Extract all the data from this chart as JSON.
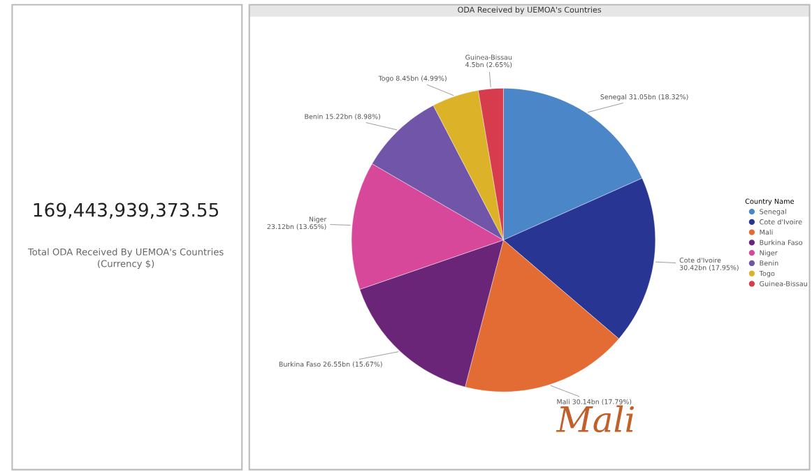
{
  "chart_data": [
    {
      "type": "other",
      "title": "169,443,939,373.55",
      "subtitle": "Total ODA Received By UEMOA's Countries\n(Currency $)"
    },
    {
      "type": "pie",
      "title": "ODA Received by UEMOA's Countries",
      "legend_title": "Country Name",
      "legend": "right",
      "categories": [
        "Senegal",
        "Cote d'Ivoire",
        "Mali",
        "Burkina Faso",
        "Niger",
        "Benin",
        "Togo",
        "Guinea-Bissau"
      ],
      "values": [
        18.32,
        17.95,
        17.79,
        15.67,
        13.65,
        8.98,
        4.99,
        2.65
      ],
      "colors": [
        "#4a86c8",
        "#283593",
        "#e36c34",
        "#6a2478",
        "#d8489a",
        "#7155a8",
        "#dcb228",
        "#d63c4c"
      ],
      "value_labels": [
        "Senegal 31.05bn (18.32%)",
        "Cote d'Ivoire\n30.42bn (17.95%)",
        "Mali 30.14bn (17.79%)",
        "Burkina Faso 26.55bn (15.67%)",
        "Niger\n23.12bn (13.65%)",
        "Benin 15.22bn (8.98%)",
        "Togo 8.45bn (4.99%)",
        "Guinea-Bissau\n4.5bn (2.65%)"
      ],
      "annotations": [
        "Mali"
      ]
    }
  ]
}
